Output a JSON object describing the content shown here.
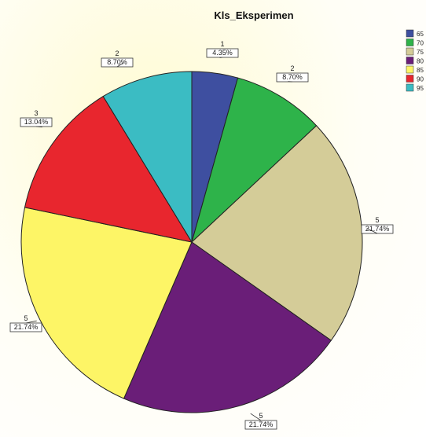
{
  "chart_data": {
    "type": "pie",
    "title": "Kls_Eksperimen",
    "slices": [
      {
        "legend": "65",
        "count": "1",
        "percent": "4.35%",
        "value": 1,
        "color": "#3e4fa0"
      },
      {
        "legend": "70",
        "count": "2",
        "percent": "8.70%",
        "value": 2,
        "color": "#2eb34a"
      },
      {
        "legend": "75",
        "count": "5",
        "percent": "21.74%",
        "value": 5,
        "color": "#d4cc98"
      },
      {
        "legend": "80",
        "count": "5",
        "percent": "21.74%",
        "value": 5,
        "color": "#6a1e78"
      },
      {
        "legend": "85",
        "count": "5",
        "percent": "21.74%",
        "value": 5,
        "color": "#fdf566"
      },
      {
        "legend": "90",
        "count": "3",
        "percent": "13.04%",
        "value": 3,
        "color": "#e8262e"
      },
      {
        "legend": "95",
        "count": "2",
        "percent": "8.70%",
        "value": 2,
        "color": "#3bbcc3"
      }
    ],
    "legend_position": "top-right"
  }
}
